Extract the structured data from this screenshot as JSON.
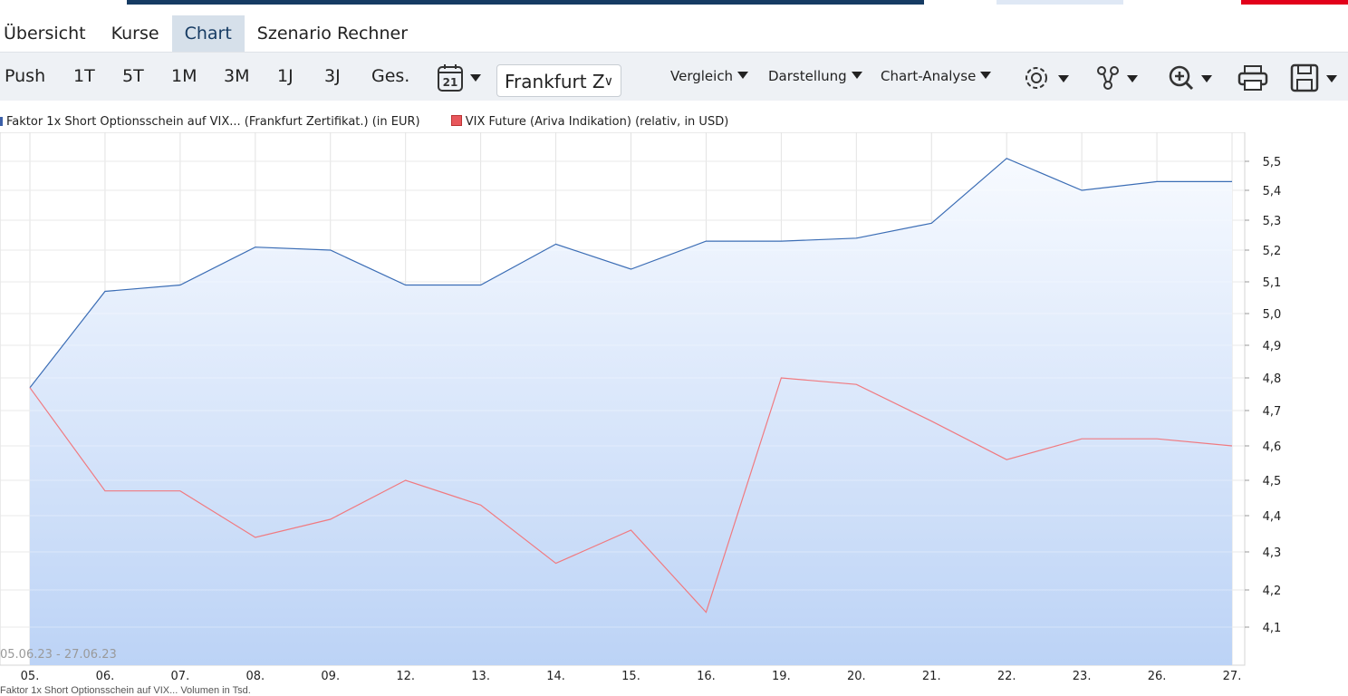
{
  "nav": {
    "tabs": [
      {
        "label": "Übersicht"
      },
      {
        "label": "Kurse"
      },
      {
        "label": "Chart",
        "active": true
      },
      {
        "label": "Szenario Rechner"
      }
    ]
  },
  "toolbar": {
    "periods": [
      "Push",
      "1T",
      "5T",
      "1M",
      "3M",
      "1J",
      "3J",
      "Ges."
    ],
    "calendar_day": "21",
    "exchange_select": "Frankfurt Z",
    "dropdowns": [
      "Vergleich",
      "Darstellung",
      "Chart-Analyse"
    ],
    "icons": [
      "settings-icon",
      "indicators-icon",
      "zoom-icon",
      "print-icon",
      "save-icon"
    ]
  },
  "legend": [
    {
      "label": "Faktor 1x Short Optionsschein auf VIX... (Frankfurt Zertifikat.) (in EUR)",
      "color": "#3b5fa8"
    },
    {
      "label": "VIX Future (Ariva Indikation) (relativ, in USD)",
      "color": "#e8575c"
    }
  ],
  "chart_data": {
    "type": "line",
    "date_range": "05.06.23 - 27.06.23",
    "categories": [
      "05.",
      "06.",
      "07.",
      "08.",
      "09.",
      "12.",
      "13.",
      "14.",
      "15.",
      "16.",
      "19.",
      "20.",
      "21.",
      "22.",
      "23.",
      "26.",
      "27."
    ],
    "y_ticks": [
      "5,5",
      "5,4",
      "5,3",
      "5,2",
      "5,1",
      "5,0",
      "4,9",
      "4,8",
      "4,7",
      "4,6",
      "4,5",
      "4,4",
      "4,3",
      "4,2",
      "4,1"
    ],
    "ylim": [
      4.0,
      5.6
    ],
    "series": [
      {
        "name": "Faktor 1x Short Optionsschein auf VIX... (Frankfurt Zertifikat.) (in EUR)",
        "color": "#3b6db5",
        "values": [
          4.77,
          5.07,
          5.09,
          5.21,
          5.2,
          5.09,
          5.09,
          5.22,
          5.14,
          5.23,
          5.23,
          5.24,
          5.29,
          5.51,
          5.4,
          5.43,
          5.43
        ]
      },
      {
        "name": "VIX Future (Ariva Indikation) (relativ, in USD)",
        "color": "#f07a80",
        "values": [
          4.77,
          4.47,
          4.47,
          4.34,
          4.39,
          4.5,
          4.43,
          4.27,
          4.36,
          4.14,
          4.8,
          4.78,
          4.67,
          4.56,
          4.62,
          4.62,
          4.6
        ]
      }
    ]
  },
  "footer": "Faktor 1x Short Optionsschein auf VIX... Volumen in Tsd."
}
